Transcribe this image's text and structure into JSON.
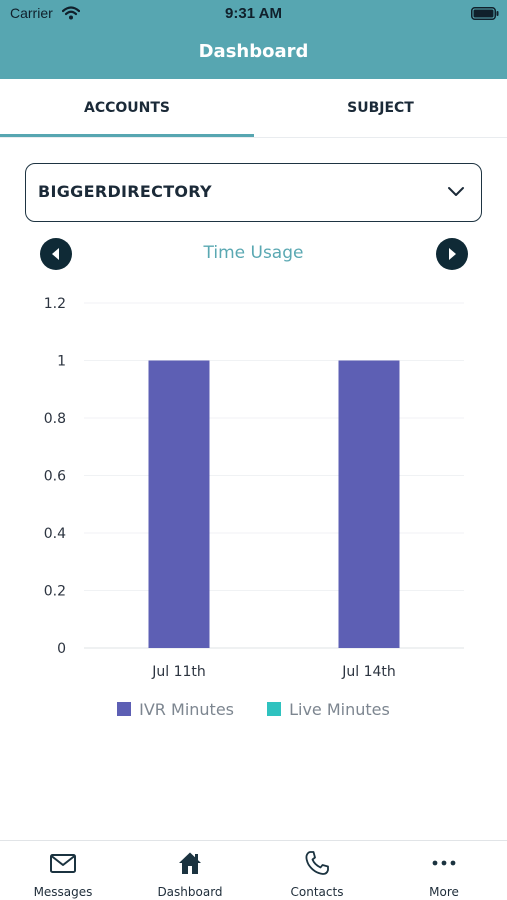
{
  "status_bar": {
    "carrier": "Carrier",
    "time": "9:31 AM"
  },
  "header": {
    "title": "Dashboard"
  },
  "tabs": [
    {
      "label": "ACCOUNTS",
      "selected": true
    },
    {
      "label": "SUBJECT",
      "selected": false
    }
  ],
  "account_select": {
    "value": "BIGGERDIRECTORY"
  },
  "chart_nav": {
    "title": "Time Usage"
  },
  "chart_data": {
    "type": "bar",
    "title": "Time Usage",
    "categories": [
      "Jul 11th",
      "Jul 14th"
    ],
    "series": [
      {
        "name": "IVR Minutes",
        "values": [
          1,
          1
        ],
        "color": "#5d5fb4"
      },
      {
        "name": "Live Minutes",
        "values": [
          0,
          0
        ],
        "color": "#2fc2bf"
      }
    ],
    "ylim": [
      0,
      1.2
    ],
    "yticks": [
      "0",
      "0.2",
      "0.4",
      "0.6",
      "0.8",
      "1",
      "1.2"
    ],
    "grid": true,
    "legend": "bottom"
  },
  "tabbar": [
    {
      "label": "Messages",
      "icon": "envelope-icon"
    },
    {
      "label": "Dashboard",
      "icon": "home-icon"
    },
    {
      "label": "Contacts",
      "icon": "phone-icon"
    },
    {
      "label": "More",
      "icon": "more-icon"
    }
  ],
  "colors": {
    "header": "#57a6b1",
    "accent": "#57a6b1",
    "nav_button": "#0f2a36",
    "ivr": "#5d5fb4",
    "live": "#2fc2bf"
  }
}
